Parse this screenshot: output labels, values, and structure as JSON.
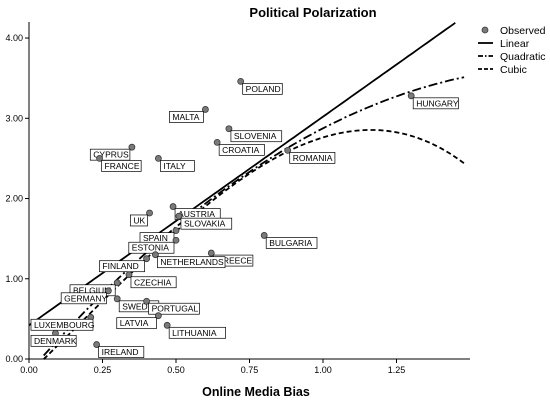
{
  "chart_data": {
    "type": "scatter",
    "title": "Political Polarization",
    "xlabel": "Online Media Bias",
    "ylabel": "",
    "xlim": [
      0,
      1.5
    ],
    "ylim": [
      0,
      4.2
    ],
    "xticks": [
      "0.00",
      "0.25",
      "0.50",
      "0.75",
      "1.00",
      "1.25"
    ],
    "xtick_values": [
      0,
      0.25,
      0.5,
      0.75,
      1.0,
      1.25
    ],
    "yticks": [
      "0.00",
      "1.00",
      "2.00",
      "3.00",
      "4.00"
    ],
    "ytick_values": [
      0,
      1,
      2,
      3,
      4
    ],
    "grid": false,
    "legend_position": "top-right",
    "legend": [
      {
        "name": "Observed",
        "style": "marker"
      },
      {
        "name": "Linear",
        "style": "solid"
      },
      {
        "name": "Quadratic",
        "style": "dashdot"
      },
      {
        "name": "Cubic",
        "style": "dashed"
      }
    ],
    "points": [
      {
        "label": "POLAND",
        "x": 0.72,
        "y": 3.46,
        "label_side": "right"
      },
      {
        "label": "MALTA",
        "x": 0.6,
        "y": 3.11,
        "label_side": "left"
      },
      {
        "label": "SLOVENIA",
        "x": 0.68,
        "y": 2.87,
        "label_side": "right"
      },
      {
        "label": "HUNGARY",
        "x": 1.3,
        "y": 3.28,
        "label_side": "right"
      },
      {
        "label": "CROATIA",
        "x": 0.64,
        "y": 2.7,
        "label_side": "right"
      },
      {
        "label": "ROMANIA",
        "x": 0.88,
        "y": 2.6,
        "label_side": "right"
      },
      {
        "label": "CYPRUS",
        "x": 0.35,
        "y": 2.64,
        "label_side": "left"
      },
      {
        "label": "FRANCE",
        "x": 0.24,
        "y": 2.5,
        "label_side": "right"
      },
      {
        "label": "ITALY",
        "x": 0.44,
        "y": 2.5,
        "label_side": "right"
      },
      {
        "label": "AUSTRIA",
        "x": 0.49,
        "y": 1.9,
        "label_side": "right"
      },
      {
        "label": "UK",
        "x": 0.41,
        "y": 1.82,
        "label_side": "left"
      },
      {
        "label": "SLOVAKIA",
        "x": 0.51,
        "y": 1.78,
        "label_side": "right"
      },
      {
        "label": "SPAIN",
        "x": 0.5,
        "y": 1.6,
        "label_side": "left"
      },
      {
        "label": "ESTONIA",
        "x": 0.5,
        "y": 1.48,
        "label_side": "left"
      },
      {
        "label": "BULGARIA",
        "x": 0.8,
        "y": 1.54,
        "label_side": "right"
      },
      {
        "label": "GREECE",
        "x": 0.62,
        "y": 1.32,
        "label_side": "right"
      },
      {
        "label": "FINLAND",
        "x": 0.4,
        "y": 1.25,
        "label_side": "left"
      },
      {
        "label": "NETHERLANDS",
        "x": 0.43,
        "y": 1.3,
        "label_side": "right"
      },
      {
        "label": "CZECHIA",
        "x": 0.34,
        "y": 1.05,
        "label_side": "right"
      },
      {
        "label": "BELGIUM",
        "x": 0.3,
        "y": 0.95,
        "label_side": "left"
      },
      {
        "label": "GERMANY",
        "x": 0.27,
        "y": 0.85,
        "label_side": "left"
      },
      {
        "label": "SWEDEN",
        "x": 0.3,
        "y": 0.75,
        "label_side": "right"
      },
      {
        "label": "PORTUGAL",
        "x": 0.4,
        "y": 0.72,
        "label_side": "right"
      },
      {
        "label": "LATVIA",
        "x": 0.44,
        "y": 0.54,
        "label_side": "left"
      },
      {
        "label": "LITHUANIA",
        "x": 0.47,
        "y": 0.42,
        "label_side": "right"
      },
      {
        "label": "LUXEMBOURG",
        "x": 0.21,
        "y": 0.52,
        "label_side": "left"
      },
      {
        "label": "DENMARK",
        "x": 0.09,
        "y": 0.32,
        "label_side": "left"
      },
      {
        "label": "IRELAND",
        "x": 0.23,
        "y": 0.18,
        "label_side": "right"
      }
    ],
    "fits": {
      "linear": {
        "x_range": [
          0,
          1.45
        ],
        "coefficients": [
          0.42,
          2.6
        ]
      },
      "quadratic": {
        "x_range": [
          0.05,
          1.48
        ],
        "coefficients": [
          -0.1636,
          4.1945,
          -1.1559
        ]
      },
      "cubic": {
        "x_range": [
          0.05,
          1.48
        ],
        "coefficients": [
          -0.1785,
          3.5,
          0.71,
          -1.27
        ]
      }
    }
  }
}
